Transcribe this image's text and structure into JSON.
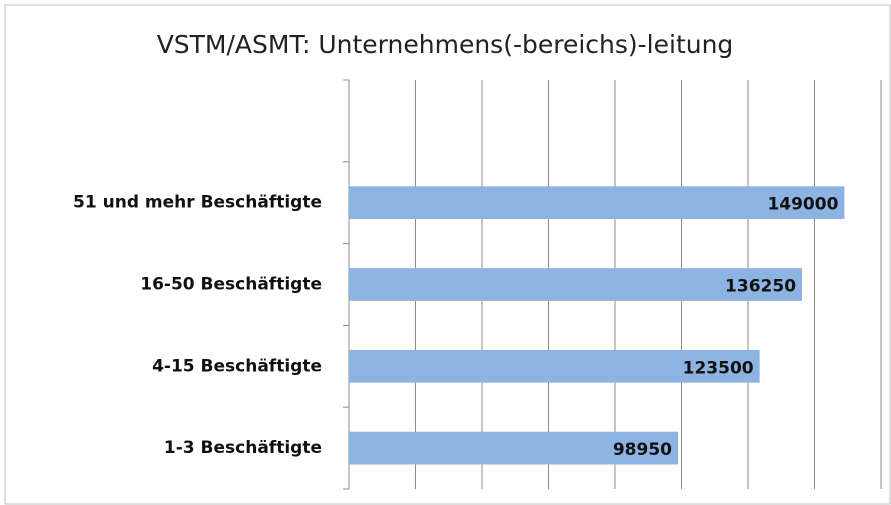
{
  "chart_data": {
    "type": "bar",
    "orientation": "horizontal",
    "title": "VSTM/ASMT: Unternehmens(-bereichs)-leitung",
    "categories": [
      null,
      "51 und mehr Beschäftigte",
      "16-50 Beschäftigte",
      "4-15 Beschäftigte",
      "1-3 Beschäftigte"
    ],
    "values": [
      null,
      149000,
      136250,
      123500,
      98950
    ],
    "color": "#8db3e2",
    "xlim": [
      0,
      160000
    ],
    "xticks": [
      0,
      20000,
      40000,
      60000,
      80000,
      100000,
      120000,
      140000,
      160000
    ],
    "grid": true
  }
}
